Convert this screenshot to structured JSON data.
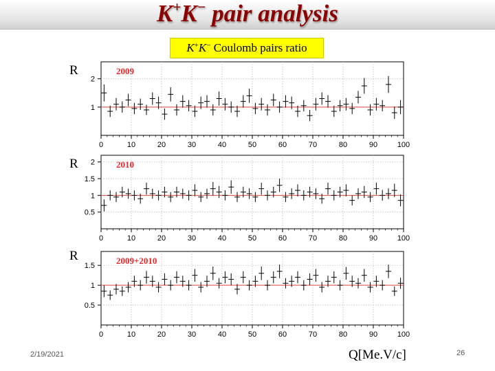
{
  "slide": {
    "title_prefix": "K",
    "title_sup1": "+",
    "title_mid": "K",
    "title_sup2": "−",
    "title_rest": " pair analysis",
    "subtitle_k1": "K",
    "subtitle_sup1": "+",
    "subtitle_k2": "K",
    "subtitle_sup2": "−",
    "subtitle_rest": " Coulomb pairs ratio",
    "y_label": "R",
    "x_unit_label": "Q[Me.V/c]",
    "date": "2/19/2021",
    "page_number": "26"
  },
  "colors": {
    "title": "#8b0000",
    "subtitle_bg": "#ffff00",
    "reference_line": "#e0443c",
    "year_label": "#e8282a",
    "grid": "#bdbdbd"
  },
  "chart_data": [
    {
      "type": "scatter",
      "label": "2009",
      "x": [
        1,
        3,
        5,
        7,
        9,
        11,
        13,
        15,
        17,
        19,
        21,
        23,
        25,
        27,
        29,
        31,
        33,
        35,
        37,
        39,
        41,
        43,
        45,
        47,
        49,
        51,
        53,
        55,
        57,
        59,
        61,
        63,
        65,
        67,
        69,
        71,
        73,
        75,
        77,
        79,
        81,
        83,
        85,
        87,
        89,
        91,
        93,
        95,
        97,
        99
      ],
      "y": [
        1.5,
        0.85,
        1.1,
        1.0,
        1.25,
        0.95,
        1.1,
        0.9,
        1.3,
        1.15,
        0.75,
        1.45,
        0.9,
        1.2,
        1.05,
        0.85,
        1.15,
        1.2,
        0.9,
        1.3,
        1.1,
        1.0,
        0.85,
        1.2,
        1.4,
        0.95,
        1.1,
        0.9,
        1.25,
        1.0,
        1.2,
        1.15,
        0.85,
        1.05,
        0.7,
        1.1,
        1.3,
        1.2,
        0.85,
        1.05,
        1.1,
        0.95,
        1.35,
        1.75,
        0.9,
        1.1,
        1.05,
        1.8,
        0.8,
        1.0
      ],
      "err": [
        0.3,
        0.2,
        0.22,
        0.2,
        0.22,
        0.2,
        0.2,
        0.18,
        0.22,
        0.22,
        0.2,
        0.25,
        0.2,
        0.22,
        0.2,
        0.2,
        0.22,
        0.22,
        0.2,
        0.25,
        0.22,
        0.2,
        0.2,
        0.22,
        0.25,
        0.2,
        0.22,
        0.2,
        0.22,
        0.2,
        0.22,
        0.22,
        0.2,
        0.2,
        0.2,
        0.22,
        0.22,
        0.22,
        0.2,
        0.2,
        0.22,
        0.2,
        0.22,
        0.28,
        0.2,
        0.22,
        0.2,
        0.3,
        0.22,
        0.25
      ],
      "xlim": [
        0,
        100
      ],
      "ylim": [
        0,
        2.6
      ],
      "xticks": [
        0,
        10,
        20,
        30,
        40,
        50,
        60,
        70,
        80,
        90,
        100
      ],
      "yticks": [
        1,
        2
      ],
      "reference_y": 1,
      "grid": true
    },
    {
      "type": "scatter",
      "label": "2010",
      "x": [
        1,
        3,
        5,
        7,
        9,
        11,
        13,
        15,
        17,
        19,
        21,
        23,
        25,
        27,
        29,
        31,
        33,
        35,
        37,
        39,
        41,
        43,
        45,
        47,
        49,
        51,
        53,
        55,
        57,
        59,
        61,
        63,
        65,
        67,
        69,
        71,
        73,
        75,
        77,
        79,
        81,
        83,
        85,
        87,
        89,
        91,
        93,
        95,
        97,
        99
      ],
      "y": [
        0.7,
        1.0,
        0.95,
        1.1,
        1.05,
        1.0,
        0.9,
        1.2,
        1.05,
        1.0,
        1.1,
        0.95,
        1.1,
        1.05,
        1.0,
        1.15,
        0.95,
        1.05,
        1.2,
        1.1,
        1.0,
        1.25,
        0.95,
        1.1,
        1.05,
        0.95,
        1.2,
        1.0,
        1.1,
        1.3,
        0.95,
        1.05,
        1.15,
        1.0,
        1.1,
        1.05,
        0.9,
        1.2,
        1.0,
        1.1,
        1.15,
        0.85,
        1.05,
        1.1,
        0.95,
        1.2,
        1.0,
        1.05,
        1.15,
        0.85
      ],
      "err": [
        0.18,
        0.15,
        0.15,
        0.16,
        0.15,
        0.15,
        0.15,
        0.18,
        0.15,
        0.15,
        0.16,
        0.15,
        0.16,
        0.15,
        0.15,
        0.18,
        0.15,
        0.15,
        0.2,
        0.18,
        0.15,
        0.2,
        0.15,
        0.16,
        0.16,
        0.15,
        0.18,
        0.15,
        0.16,
        0.2,
        0.15,
        0.16,
        0.18,
        0.15,
        0.16,
        0.16,
        0.15,
        0.18,
        0.15,
        0.16,
        0.18,
        0.15,
        0.16,
        0.18,
        0.15,
        0.18,
        0.16,
        0.16,
        0.2,
        0.18
      ],
      "xlim": [
        0,
        100
      ],
      "ylim": [
        0,
        2.2
      ],
      "xticks": [
        0,
        10,
        20,
        30,
        40,
        50,
        60,
        70,
        80,
        90,
        100
      ],
      "yticks": [
        0.5,
        1,
        1.5,
        2
      ],
      "reference_y": 1,
      "grid": true
    },
    {
      "type": "scatter",
      "label": "2009+2010",
      "x": [
        1,
        3,
        5,
        7,
        9,
        11,
        13,
        15,
        17,
        19,
        21,
        23,
        25,
        27,
        29,
        31,
        33,
        35,
        37,
        39,
        41,
        43,
        45,
        47,
        49,
        51,
        53,
        55,
        57,
        59,
        61,
        63,
        65,
        67,
        69,
        71,
        73,
        75,
        77,
        79,
        81,
        83,
        85,
        87,
        89,
        91,
        93,
        95,
        97,
        99
      ],
      "y": [
        0.85,
        0.75,
        0.9,
        0.85,
        0.95,
        1.1,
        1.0,
        1.2,
        1.1,
        0.95,
        1.15,
        1.0,
        1.2,
        1.1,
        1.0,
        1.25,
        0.95,
        1.1,
        1.3,
        1.05,
        1.2,
        1.15,
        0.9,
        1.2,
        1.0,
        1.1,
        1.3,
        1.0,
        1.2,
        1.35,
        1.05,
        1.1,
        1.2,
        1.0,
        1.15,
        1.25,
        0.95,
        1.1,
        1.2,
        1.0,
        1.3,
        1.1,
        1.05,
        1.25,
        0.95,
        1.1,
        1.0,
        1.35,
        0.85,
        1.05
      ],
      "err": [
        0.15,
        0.12,
        0.13,
        0.12,
        0.13,
        0.14,
        0.13,
        0.16,
        0.14,
        0.13,
        0.15,
        0.13,
        0.15,
        0.14,
        0.13,
        0.16,
        0.13,
        0.14,
        0.17,
        0.13,
        0.15,
        0.15,
        0.13,
        0.15,
        0.13,
        0.14,
        0.17,
        0.13,
        0.15,
        0.17,
        0.13,
        0.14,
        0.15,
        0.13,
        0.15,
        0.16,
        0.13,
        0.14,
        0.15,
        0.13,
        0.16,
        0.14,
        0.13,
        0.16,
        0.13,
        0.14,
        0.13,
        0.17,
        0.12,
        0.14
      ],
      "xlim": [
        0,
        100
      ],
      "ylim": [
        0,
        1.85
      ],
      "xticks": [
        0,
        10,
        20,
        30,
        40,
        50,
        60,
        70,
        80,
        90,
        100
      ],
      "yticks": [
        0.5,
        1,
        1.5
      ],
      "reference_y": 1,
      "grid": true
    }
  ]
}
